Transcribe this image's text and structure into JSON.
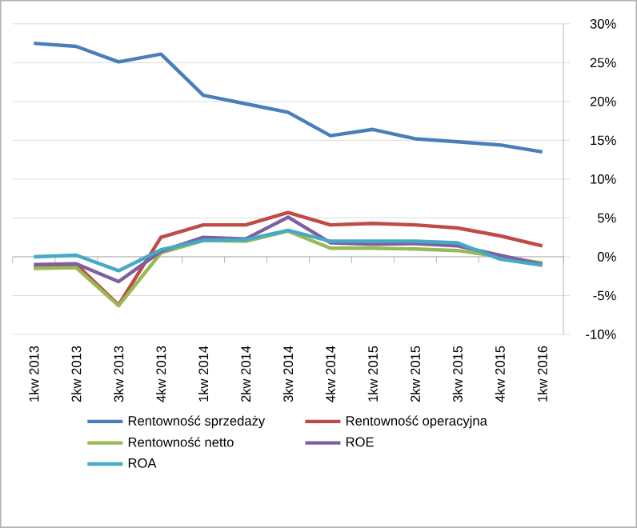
{
  "chart_data": {
    "type": "line",
    "categories": [
      "1kw 2013",
      "2kw 2013",
      "3kw 2013",
      "4kw 2013",
      "1kw 2014",
      "2kw 2014",
      "3kw 2014",
      "4kw 2014",
      "1kw 2015",
      "2kw 2015",
      "3kw 2015",
      "4kw 2015",
      "1kw 2016"
    ],
    "series": [
      {
        "name": "Rentowność sprzedaży",
        "color": "#4a7ebb",
        "values": [
          27.5,
          27.1,
          25.1,
          26.1,
          20.8,
          19.7,
          18.6,
          15.6,
          16.4,
          15.2,
          14.8,
          14.4,
          13.5
        ]
      },
      {
        "name": "Rentowność operacyjna",
        "color": "#be4b48",
        "values": [
          -1.3,
          -1.0,
          -6.2,
          2.5,
          4.1,
          4.1,
          5.7,
          4.1,
          4.3,
          4.1,
          3.7,
          2.7,
          1.4
        ]
      },
      {
        "name": "Rentowność netto",
        "color": "#98b954",
        "values": [
          -1.5,
          -1.4,
          -6.3,
          0.5,
          2.1,
          2.0,
          3.3,
          1.1,
          1.1,
          1.0,
          0.8,
          0.0,
          -0.8
        ]
      },
      {
        "name": "ROE",
        "color": "#7d60a0",
        "values": [
          -1.0,
          -0.9,
          -3.2,
          0.7,
          2.5,
          2.3,
          5.1,
          1.8,
          1.6,
          1.7,
          1.4,
          0.2,
          -1.0
        ]
      },
      {
        "name": "ROA",
        "color": "#46aac5",
        "values": [
          0.0,
          0.2,
          -1.8,
          0.9,
          2.1,
          2.2,
          3.4,
          2.0,
          2.0,
          2.0,
          1.8,
          -0.3,
          -1.1
        ]
      }
    ],
    "ylim": [
      -10,
      30
    ],
    "yticks": [
      {
        "value": -10,
        "label": "-10%"
      },
      {
        "value": -5,
        "label": "-5%"
      },
      {
        "value": 0,
        "label": "0%"
      },
      {
        "value": 5,
        "label": "5%"
      },
      {
        "value": 10,
        "label": "10%"
      },
      {
        "value": 15,
        "label": "15%"
      },
      {
        "value": 20,
        "label": "20%"
      },
      {
        "value": 25,
        "label": "25%"
      },
      {
        "value": 30,
        "label": "30%"
      }
    ],
    "grid": "y",
    "legend": "bottom",
    "marker": "none",
    "line_style": "solid"
  }
}
